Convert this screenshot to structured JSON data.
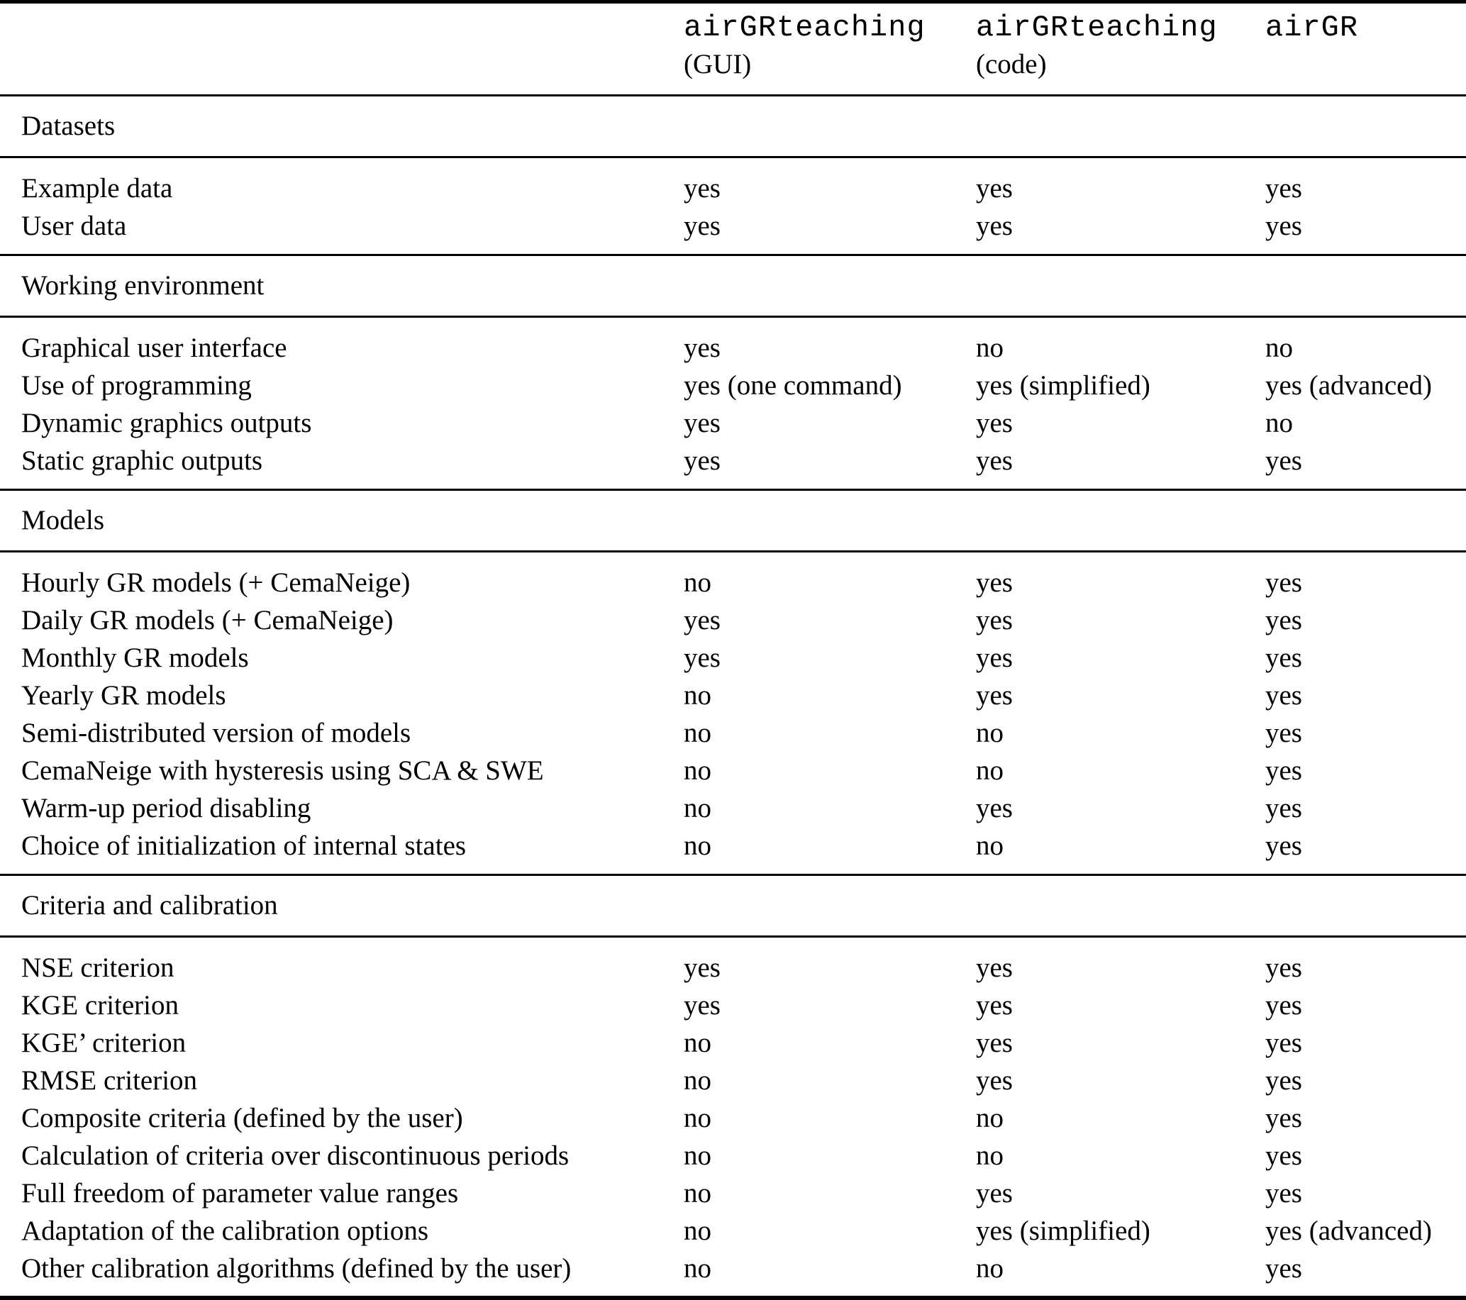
{
  "header": {
    "columns": [
      {
        "name": "airGRteaching",
        "qualifier": "(GUI)"
      },
      {
        "name": "airGRteaching",
        "qualifier": "(code)"
      },
      {
        "name": "airGR",
        "qualifier": ""
      }
    ]
  },
  "sections": [
    {
      "title": "Datasets",
      "rows": [
        {
          "label": "Example data",
          "values": [
            "yes",
            "yes",
            "yes"
          ]
        },
        {
          "label": "User data",
          "values": [
            "yes",
            "yes",
            "yes"
          ]
        }
      ]
    },
    {
      "title": "Working environment",
      "rows": [
        {
          "label": "Graphical user interface",
          "values": [
            "yes",
            "no",
            "no"
          ]
        },
        {
          "label": "Use of programming",
          "values": [
            "yes (one command)",
            "yes (simplified)",
            "yes (advanced)"
          ]
        },
        {
          "label": "Dynamic graphics outputs",
          "values": [
            "yes",
            "yes",
            "no"
          ]
        },
        {
          "label": "Static graphic outputs",
          "values": [
            "yes",
            "yes",
            "yes"
          ]
        }
      ]
    },
    {
      "title": "Models",
      "rows": [
        {
          "label": "Hourly GR models (+ CemaNeige)",
          "values": [
            "no",
            "yes",
            "yes"
          ]
        },
        {
          "label": "Daily GR models (+ CemaNeige)",
          "values": [
            "yes",
            "yes",
            "yes"
          ]
        },
        {
          "label": "Monthly GR models",
          "values": [
            "yes",
            "yes",
            "yes"
          ]
        },
        {
          "label": "Yearly GR models",
          "values": [
            "no",
            "yes",
            "yes"
          ]
        },
        {
          "label": "Semi-distributed version of models",
          "values": [
            "no",
            "no",
            "yes"
          ]
        },
        {
          "label": "CemaNeige with hysteresis using SCA & SWE",
          "values": [
            "no",
            "no",
            "yes"
          ]
        },
        {
          "label": "Warm-up period disabling",
          "values": [
            "no",
            "yes",
            "yes"
          ]
        },
        {
          "label": "Choice of initialization of internal states",
          "values": [
            "no",
            "no",
            "yes"
          ]
        }
      ]
    },
    {
      "title": "Criteria and calibration",
      "rows": [
        {
          "label": "NSE criterion",
          "values": [
            "yes",
            "yes",
            "yes"
          ]
        },
        {
          "label": "KGE criterion",
          "values": [
            "yes",
            "yes",
            "yes"
          ]
        },
        {
          "label": "KGE’ criterion",
          "values": [
            "no",
            "yes",
            "yes"
          ]
        },
        {
          "label": "RMSE criterion",
          "values": [
            "no",
            "yes",
            "yes"
          ]
        },
        {
          "label": "Composite criteria (defined by the user)",
          "values": [
            "no",
            "no",
            "yes"
          ]
        },
        {
          "label": "Calculation of criteria over discontinuous periods",
          "values": [
            "no",
            "no",
            "yes"
          ]
        },
        {
          "label": "Full freedom of parameter value ranges",
          "values": [
            "no",
            "yes",
            "yes"
          ]
        },
        {
          "label": "Adaptation of the calibration options",
          "values": [
            "no",
            "yes (simplified)",
            "yes (advanced)"
          ]
        },
        {
          "label": "Other calibration algorithms (defined by the user)",
          "values": [
            "no",
            "no",
            "yes"
          ]
        }
      ]
    }
  ]
}
